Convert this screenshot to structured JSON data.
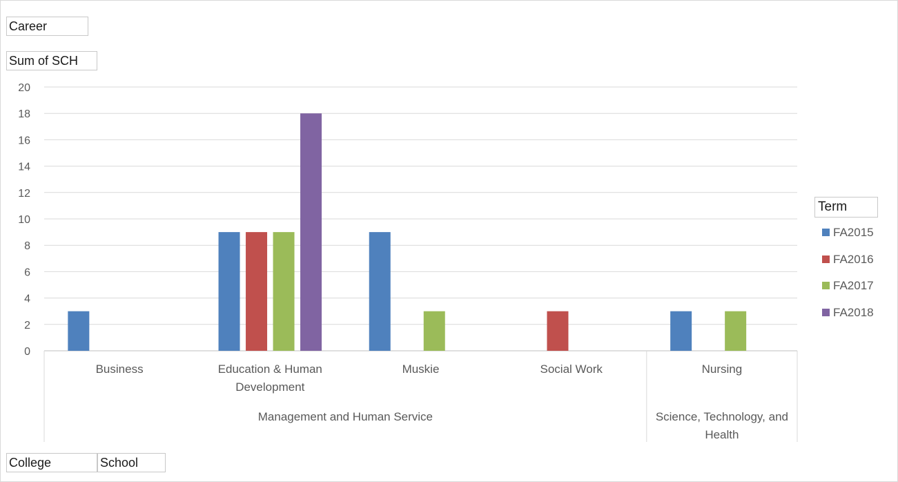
{
  "filters": {
    "career": "Career",
    "value_field": "Sum of SCH",
    "row_fields": [
      "College",
      "School"
    ]
  },
  "chart_data": {
    "type": "bar",
    "title": "",
    "xlabel": "",
    "ylabel": "",
    "ylim": [
      0,
      20
    ],
    "yticks": [
      0,
      2,
      4,
      6,
      8,
      10,
      12,
      14,
      16,
      18,
      20
    ],
    "grid": true,
    "legend_title": "Term",
    "legend_position": "right",
    "categories": [
      "Business",
      "Education & Human Development",
      "Muskie",
      "Social Work",
      "Nursing"
    ],
    "category_lines": [
      [
        "Business"
      ],
      [
        "Education & Human",
        "Development"
      ],
      [
        "Muskie"
      ],
      [
        "Social Work"
      ],
      [
        "Nursing"
      ]
    ],
    "groups": [
      {
        "label_lines": [
          "Management and Human Service"
        ],
        "categories": [
          "Business",
          "Education & Human Development",
          "Muskie",
          "Social Work"
        ]
      },
      {
        "label_lines": [
          "Science, Technology, and",
          "Health"
        ],
        "categories": [
          "Nursing"
        ]
      }
    ],
    "series": [
      {
        "name": "FA2015",
        "color": "#4f81bd",
        "values": [
          3,
          9,
          9,
          null,
          3
        ]
      },
      {
        "name": "FA2016",
        "color": "#c0504d",
        "values": [
          null,
          9,
          null,
          3,
          null
        ]
      },
      {
        "name": "FA2017",
        "color": "#9bbb59",
        "values": [
          null,
          9,
          3,
          null,
          3
        ]
      },
      {
        "name": "FA2018",
        "color": "#8064a2",
        "values": [
          null,
          18,
          null,
          null,
          null
        ]
      }
    ]
  }
}
